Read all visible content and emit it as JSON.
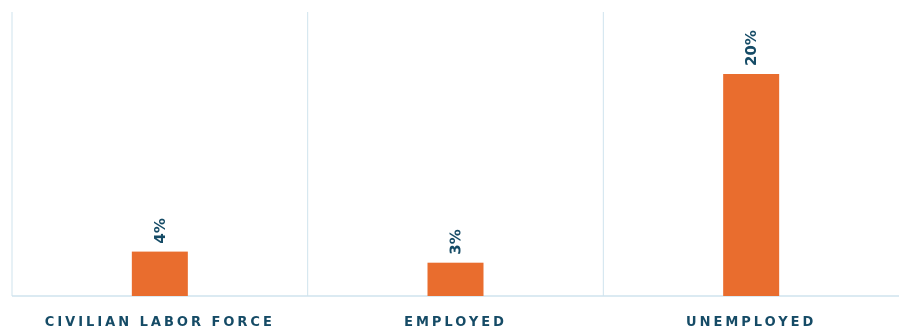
{
  "chart_data": {
    "type": "bar",
    "categories": [
      "CIVILIAN LABOR FORCE",
      "EMPLOYED",
      "UNEMPLOYED"
    ],
    "values": [
      4,
      3,
      20
    ],
    "value_labels": [
      "4%",
      "3%",
      "20%"
    ],
    "title": "",
    "xlabel": "",
    "ylabel": "",
    "ylim": [
      0,
      25
    ],
    "grid": "vertical separators between categories",
    "legend": "none",
    "colors": {
      "bar": "#E96D2E",
      "label_text": "#154B66",
      "gridline": "#CFE3EE"
    }
  }
}
